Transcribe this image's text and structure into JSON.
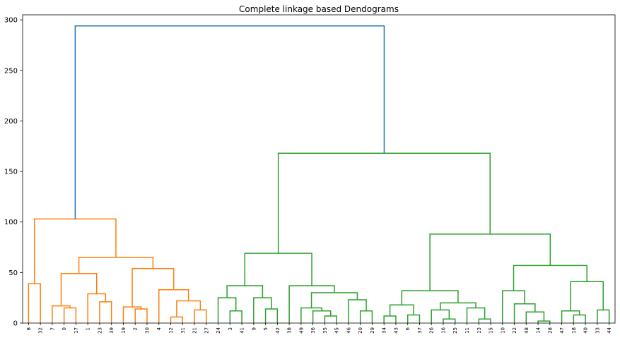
{
  "chart_data": {
    "type": "dendrogram",
    "title": "Complete linkage based Dendograms",
    "xlabel": "",
    "ylabel": "",
    "ylim": [
      0,
      305
    ],
    "yticks": [
      0,
      50,
      100,
      150,
      200,
      250,
      300
    ],
    "grid": false,
    "leaf_labels": [
      "8",
      "32",
      "7",
      "0",
      "17",
      "1",
      "23",
      "39",
      "19",
      "2",
      "30",
      "4",
      "12",
      "31",
      "21",
      "27",
      "24",
      "3",
      "41",
      "9",
      "5",
      "42",
      "38",
      "49",
      "36",
      "35",
      "45",
      "46",
      "20",
      "29",
      "34",
      "43",
      "6",
      "37",
      "26",
      "16",
      "25",
      "11",
      "13",
      "15",
      "10",
      "22",
      "48",
      "14",
      "28",
      "47",
      "18",
      "40",
      "33",
      "44"
    ],
    "clusters": [
      {
        "name": "orange",
        "color": "#ff7f0e"
      },
      {
        "name": "green",
        "color": "#2ca02c"
      },
      {
        "name": "root",
        "color": "#1f77b4"
      }
    ],
    "links": [
      {
        "left": "L0",
        "right": "L1",
        "height": 39,
        "color": "#ff7f0e"
      },
      {
        "left": "L3",
        "right": "L4",
        "height": 15,
        "color": "#ff7f0e"
      },
      {
        "left": "L2",
        "right": "N1",
        "height": 17,
        "color": "#ff7f0e"
      },
      {
        "left": "L6",
        "right": "L7",
        "height": 21,
        "color": "#ff7f0e"
      },
      {
        "left": "L5",
        "right": "N3",
        "height": 29,
        "color": "#ff7f0e"
      },
      {
        "left": "N2",
        "right": "N4",
        "height": 49,
        "color": "#ff7f0e"
      },
      {
        "left": "L9",
        "right": "L10",
        "height": 14,
        "color": "#ff7f0e"
      },
      {
        "left": "L8",
        "right": "N6",
        "height": 16,
        "color": "#ff7f0e"
      },
      {
        "left": "L12",
        "right": "L13",
        "height": 6,
        "color": "#ff7f0e"
      },
      {
        "left": "L14",
        "right": "L15",
        "height": 13,
        "color": "#ff7f0e"
      },
      {
        "left": "N8",
        "right": "N9",
        "height": 22,
        "color": "#ff7f0e"
      },
      {
        "left": "L11",
        "right": "N10",
        "height": 33,
        "color": "#ff7f0e"
      },
      {
        "left": "N7",
        "right": "N11",
        "height": 54,
        "color": "#ff7f0e"
      },
      {
        "left": "N5",
        "right": "N12",
        "height": 65,
        "color": "#ff7f0e"
      },
      {
        "left": "N0",
        "right": "N13",
        "height": 103,
        "color": "#ff7f0e"
      },
      {
        "left": "L17",
        "right": "L18",
        "height": 12,
        "color": "#2ca02c"
      },
      {
        "left": "L16",
        "right": "N15",
        "height": 25,
        "color": "#2ca02c"
      },
      {
        "left": "L20",
        "right": "L21",
        "height": 14,
        "color": "#2ca02c"
      },
      {
        "left": "L19",
        "right": "N17",
        "height": 25,
        "color": "#2ca02c"
      },
      {
        "left": "N16",
        "right": "N18",
        "height": 37,
        "color": "#2ca02c"
      },
      {
        "left": "L25",
        "right": "L26",
        "height": 7,
        "color": "#2ca02c"
      },
      {
        "left": "L24",
        "right": "N20",
        "height": 12,
        "color": "#2ca02c"
      },
      {
        "left": "L23",
        "right": "N21",
        "height": 15,
        "color": "#2ca02c"
      },
      {
        "left": "L28",
        "right": "L29",
        "height": 12,
        "color": "#2ca02c"
      },
      {
        "left": "L27",
        "right": "N23",
        "height": 23,
        "color": "#2ca02c"
      },
      {
        "left": "N22",
        "right": "N24",
        "height": 30,
        "color": "#2ca02c"
      },
      {
        "left": "L22",
        "right": "N25",
        "height": 37,
        "color": "#2ca02c"
      },
      {
        "left": "N19",
        "right": "N26",
        "height": 69,
        "color": "#2ca02c"
      },
      {
        "left": "L30",
        "right": "L31",
        "height": 7,
        "color": "#2ca02c"
      },
      {
        "left": "L32",
        "right": "L33",
        "height": 8,
        "color": "#2ca02c"
      },
      {
        "left": "N28",
        "right": "N29",
        "height": 18,
        "color": "#2ca02c"
      },
      {
        "left": "L35",
        "right": "L36",
        "height": 4,
        "color": "#2ca02c"
      },
      {
        "left": "L34",
        "right": "N31",
        "height": 13,
        "color": "#2ca02c"
      },
      {
        "left": "L38",
        "right": "L39",
        "height": 4,
        "color": "#2ca02c"
      },
      {
        "left": "L37",
        "right": "N33",
        "height": 15,
        "color": "#2ca02c"
      },
      {
        "left": "N32",
        "right": "N34",
        "height": 20,
        "color": "#2ca02c"
      },
      {
        "left": "N30",
        "right": "N35",
        "height": 32,
        "color": "#2ca02c"
      },
      {
        "left": "L43",
        "right": "L44",
        "height": 2,
        "color": "#2ca02c"
      },
      {
        "left": "L42",
        "right": "N37",
        "height": 11,
        "color": "#2ca02c"
      },
      {
        "left": "L41",
        "right": "N38",
        "height": 19,
        "color": "#2ca02c"
      },
      {
        "left": "L40",
        "right": "N39",
        "height": 32,
        "color": "#2ca02c"
      },
      {
        "left": "L46",
        "right": "L47",
        "height": 8,
        "color": "#2ca02c"
      },
      {
        "left": "L45",
        "right": "N41",
        "height": 12,
        "color": "#2ca02c"
      },
      {
        "left": "L48",
        "right": "L49",
        "height": 13,
        "color": "#2ca02c"
      },
      {
        "left": "N42",
        "right": "N43",
        "height": 41,
        "color": "#2ca02c"
      },
      {
        "left": "N40",
        "right": "N44",
        "height": 57,
        "color": "#2ca02c"
      },
      {
        "left": "N36",
        "right": "N45",
        "height": 88,
        "color": "#2ca02c"
      },
      {
        "left": "N27",
        "right": "N46",
        "height": 168,
        "color": "#2ca02c"
      },
      {
        "left": "N14",
        "right": "N47",
        "height": 294,
        "color": "#1f77b4"
      }
    ]
  }
}
